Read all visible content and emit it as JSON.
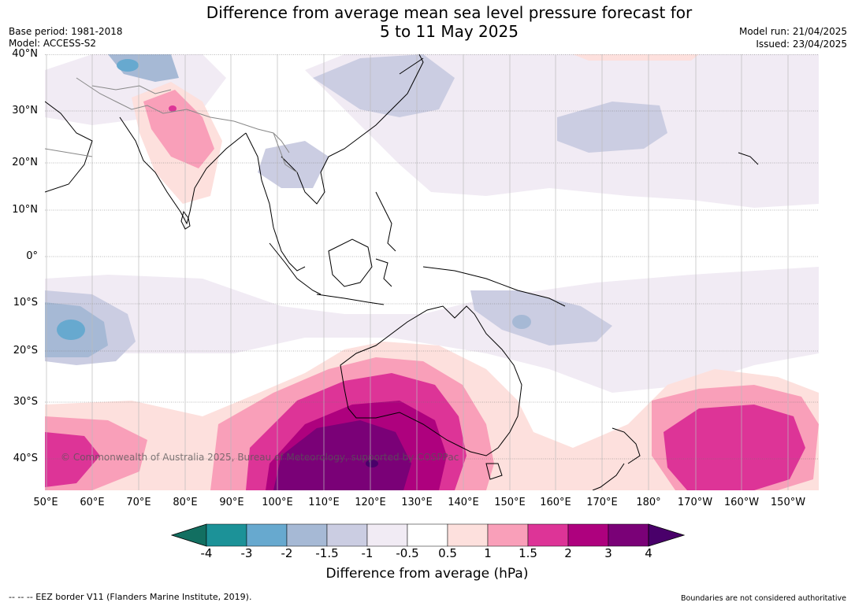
{
  "title_line1": "Difference from average mean sea level pressure forecast for",
  "title_line2": "5 to 11 May 2025",
  "base_period": "Base period: 1981-2018",
  "model": "Model: ACCESS-S2",
  "model_run": "Model run: 21/04/2025",
  "issued": "Issued: 23/04/2025",
  "map": {
    "lat_labels": [
      "40°N",
      "30°N",
      "20°N",
      "10°N",
      "0°",
      "10°S",
      "20°S",
      "30°S",
      "40°S"
    ],
    "lon_labels": [
      "50°E",
      "60°E",
      "70°E",
      "80°E",
      "90°E",
      "100°E",
      "110°E",
      "120°E",
      "130°E",
      "140°E",
      "150°E",
      "160°E",
      "170°E",
      "180°",
      "170°W",
      "160°W",
      "150°W"
    ],
    "copyright": "© Commonwealth of Australia 2025, Bureau of Meteorology, supported by COSPPac",
    "colors": {
      "ocean": "#ffffff",
      "coast": "#000000",
      "borders": "#888888"
    }
  },
  "legend": {
    "label": "Difference from average (hPa)",
    "ticks": [
      "-4",
      "-3",
      "-2",
      "-1.5",
      "-1",
      "-0.5",
      "0.5",
      "1",
      "1.5",
      "2",
      "3",
      "4"
    ],
    "colors": [
      "#126f61",
      "#1c9298",
      "#67a9cf",
      "#a6b9d5",
      "#cbcde2",
      "#f1ebf4",
      "#ffffff",
      "#fde0dd",
      "#f99fb9",
      "#dd3497",
      "#ae017e",
      "#7a0177",
      "#49006a"
    ]
  },
  "footer_left": "--  --  -- EEZ border V11 (Flanders Marine Institute, 2019).",
  "footer_right": "Boundaries are not considered authoritative"
}
